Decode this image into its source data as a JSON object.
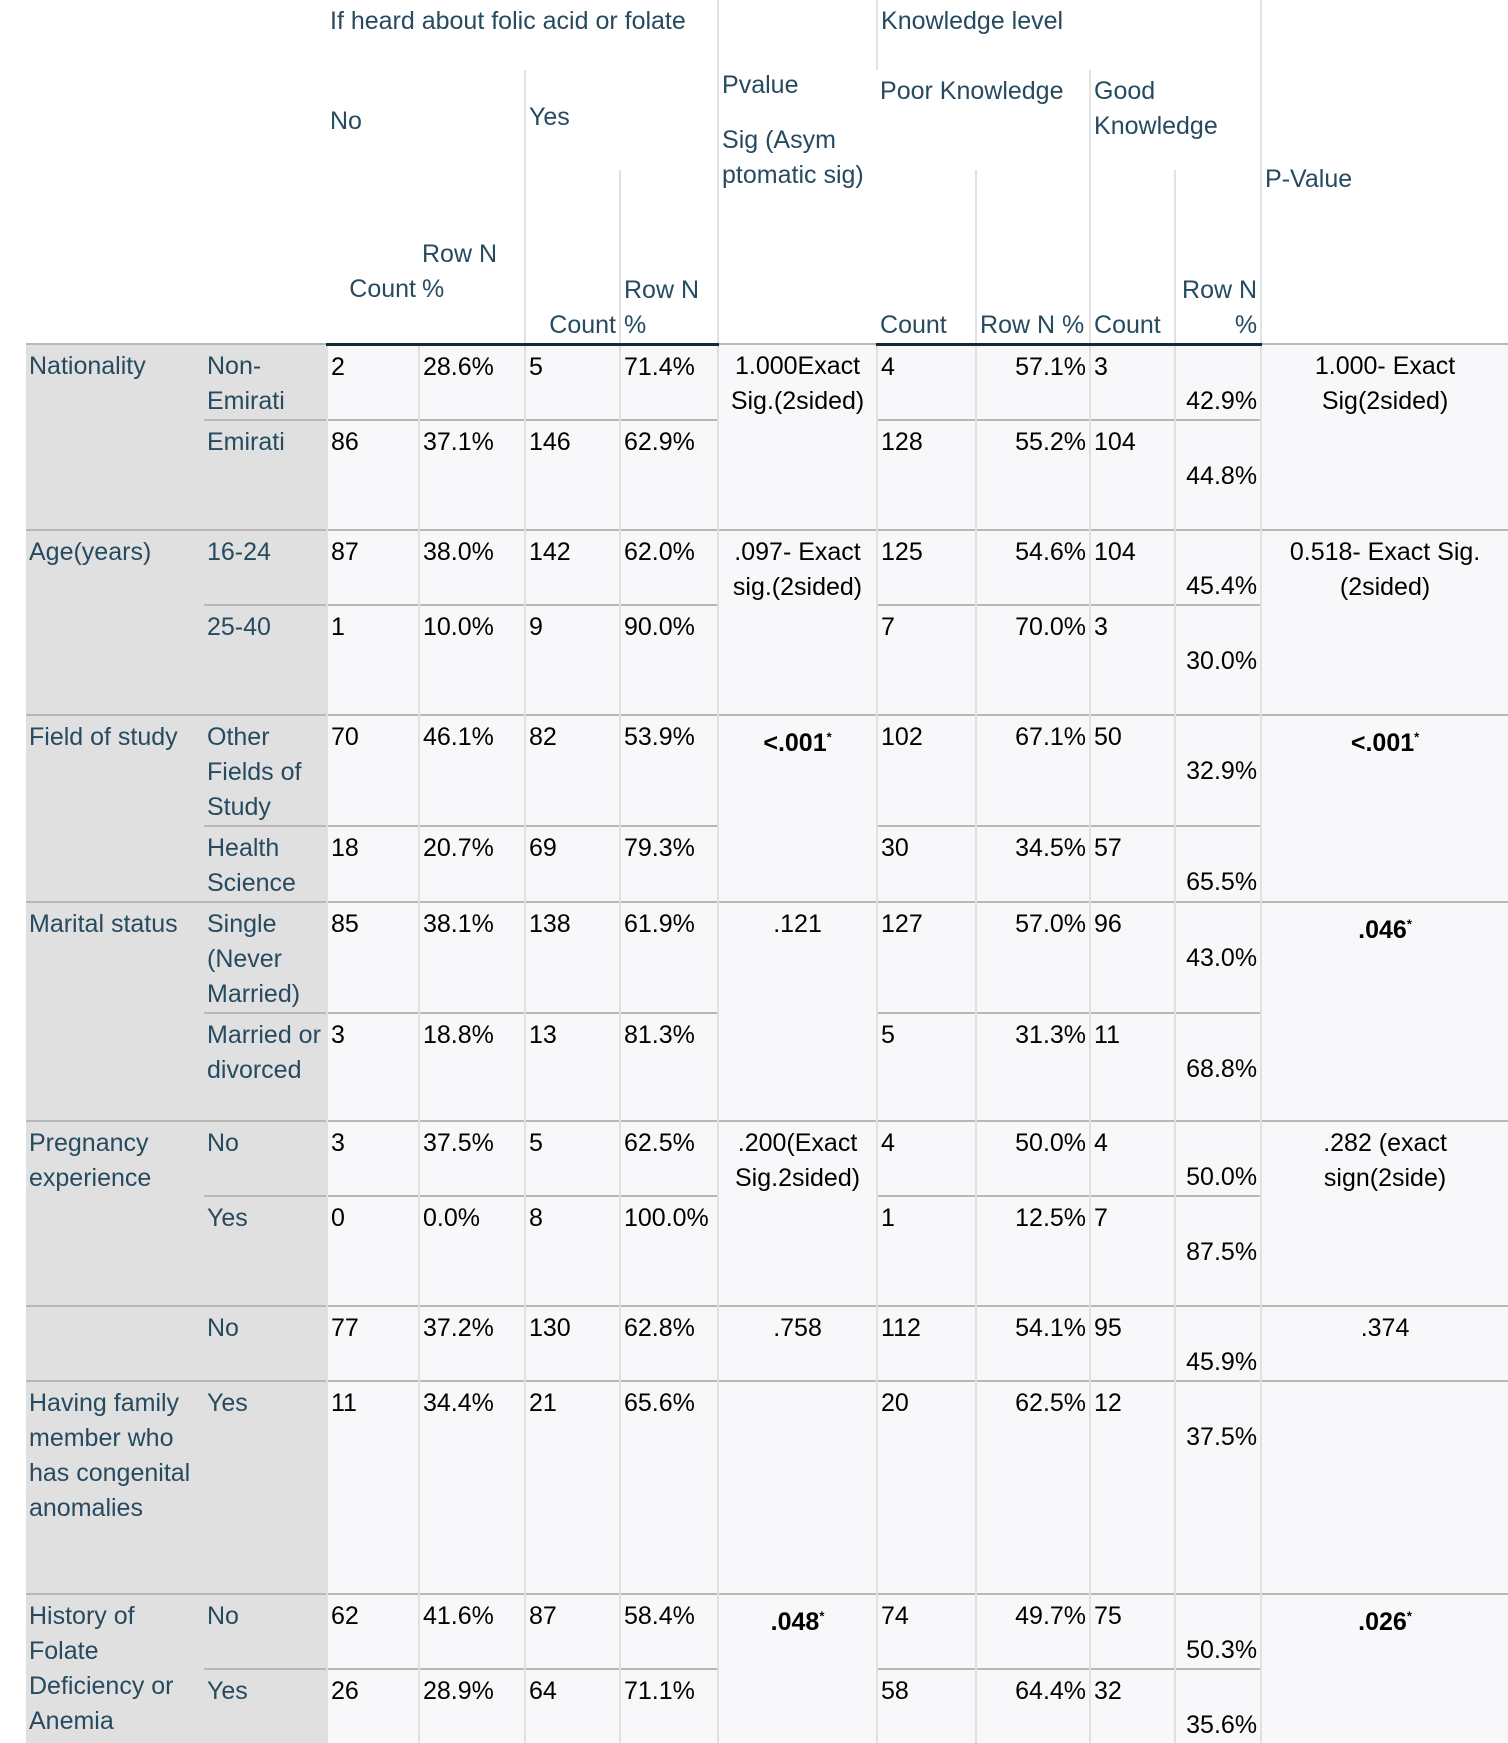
{
  "header": {
    "heard": "If heard about folic acid or folate",
    "no": "No",
    "yes": "Yes",
    "pvalue": "Pvalue",
    "sig": "Sig (Asym ptomatic sig)",
    "knowledge": "Knowledge level",
    "poor": "Poor Knowledge",
    "good": "Good Knowledge",
    "pvalue2": "P-Value",
    "count": "Count",
    "rowpct": "Row N %"
  },
  "groups": [
    {
      "label": "Nationality",
      "pvalue": "1.000Exact Sig.(2sided)",
      "pvalue_bold": false,
      "pvalue_mark": "",
      "pvalue2": "1.000- Exact Sig(2sided)",
      "pvalue2_bold": false,
      "pvalue2_mark": "",
      "rows": [
        {
          "category": "Non-Emirati",
          "no_count": "2",
          "no_pct": "28.6%",
          "yes_count": "5",
          "yes_pct": "71.4%",
          "poor_count": "4",
          "poor_pct": "57.1%",
          "good_count": "3",
          "good_pct": "42.9%"
        },
        {
          "category": "Emirati",
          "no_count": "86",
          "no_pct": "37.1%",
          "yes_count": "146",
          "yes_pct": "62.9%",
          "poor_count": "128",
          "poor_pct": "55.2%",
          "good_count": "104",
          "good_pct": "44.8%"
        }
      ]
    },
    {
      "label": "Age(years)",
      "pvalue": ".097- Exact sig.(2sided)",
      "pvalue_bold": false,
      "pvalue_mark": "",
      "pvalue2": "0.518- Exact Sig.(2sided)",
      "pvalue2_bold": false,
      "pvalue2_mark": "",
      "rows": [
        {
          "category": "16-24",
          "no_count": "87",
          "no_pct": "38.0%",
          "yes_count": "142",
          "yes_pct": "62.0%",
          "poor_count": "125",
          "poor_pct": "54.6%",
          "good_count": "104",
          "good_pct": "45.4%"
        },
        {
          "category": "25-40",
          "no_count": "1",
          "no_pct": "10.0%",
          "yes_count": "9",
          "yes_pct": "90.0%",
          "poor_count": "7",
          "poor_pct": "70.0%",
          "good_count": "3",
          "good_pct": "30.0%"
        }
      ]
    },
    {
      "label": "Field of study",
      "pvalue": "<.001",
      "pvalue_bold": true,
      "pvalue_mark": "*",
      "pvalue2": "<.001",
      "pvalue2_bold": true,
      "pvalue2_mark": "*",
      "rows": [
        {
          "category": "Other Fields of Study",
          "no_count": "70",
          "no_pct": "46.1%",
          "yes_count": "82",
          "yes_pct": "53.9%",
          "poor_count": "102",
          "poor_pct": "67.1%",
          "good_count": "50",
          "good_pct": "32.9%"
        },
        {
          "category": "Health Science",
          "no_count": "18",
          "no_pct": "20.7%",
          "yes_count": "69",
          "yes_pct": "79.3%",
          "poor_count": "30",
          "poor_pct": "34.5%",
          "good_count": "57",
          "good_pct": "65.5%"
        }
      ]
    },
    {
      "label": "Marital status",
      "pvalue": ".121",
      "pvalue_bold": false,
      "pvalue_mark": "",
      "pvalue2": ".046",
      "pvalue2_bold": true,
      "pvalue2_mark": "*",
      "rows": [
        {
          "category": "Single (Never Married)",
          "no_count": "85",
          "no_pct": "38.1%",
          "yes_count": "138",
          "yes_pct": "61.9%",
          "poor_count": "127",
          "poor_pct": "57.0%",
          "good_count": "96",
          "good_pct": "43.0%"
        },
        {
          "category": "Married or divorced",
          "no_count": "3",
          "no_pct": "18.8%",
          "yes_count": "13",
          "yes_pct": "81.3%",
          "poor_count": "5",
          "poor_pct": "31.3%",
          "good_count": "11",
          "good_pct": "68.8%"
        }
      ]
    },
    {
      "label": "Pregnancy experience",
      "pvalue": ".200(Exact Sig.2sided)",
      "pvalue_bold": false,
      "pvalue_mark": "",
      "pvalue2": ".282 (exact sign(2side)",
      "pvalue2_bold": false,
      "pvalue2_mark": "",
      "rows": [
        {
          "category": "No",
          "no_count": "3",
          "no_pct": "37.5%",
          "yes_count": "5",
          "yes_pct": "62.5%",
          "poor_count": "4",
          "poor_pct": "50.0%",
          "good_count": "4",
          "good_pct": "50.0%"
        },
        {
          "category": "Yes",
          "no_count": "0",
          "no_pct": "0.0%",
          "yes_count": "8",
          "yes_pct": "100.0%",
          "poor_count": "1",
          "poor_pct": "12.5%",
          "good_count": "7",
          "good_pct": "87.5%"
        }
      ]
    },
    {
      "label": "",
      "pvalue": ".758",
      "pvalue_bold": false,
      "pvalue_mark": "",
      "pvalue2": ".374",
      "pvalue2_bold": false,
      "pvalue2_mark": "",
      "rows": [
        {
          "category": "No",
          "no_count": "77",
          "no_pct": "37.2%",
          "yes_count": "130",
          "yes_pct": "62.8%",
          "poor_count": "112",
          "poor_pct": "54.1%",
          "good_count": "95",
          "good_pct": "45.9%"
        }
      ]
    },
    {
      "label": "Having family member who has congenital anomalies",
      "pvalue": "",
      "pvalue_bold": false,
      "pvalue_mark": "",
      "pvalue2": "",
      "pvalue2_bold": false,
      "pvalue2_mark": "",
      "rows": [
        {
          "category": "Yes",
          "no_count": "11",
          "no_pct": "34.4%",
          "yes_count": "21",
          "yes_pct": "65.6%",
          "poor_count": "20",
          "poor_pct": "62.5%",
          "good_count": "12",
          "good_pct": "37.5%"
        }
      ]
    },
    {
      "label": "History of Folate Deficiency or Anemia",
      "pvalue": ".048",
      "pvalue_bold": true,
      "pvalue_mark": "*",
      "pvalue2": ".026",
      "pvalue2_bold": true,
      "pvalue2_mark": "*",
      "rows": [
        {
          "category": "No",
          "no_count": "62",
          "no_pct": "41.6%",
          "yes_count": "87",
          "yes_pct": "58.4%",
          "poor_count": "74",
          "poor_pct": "49.7%",
          "good_count": "75",
          "good_pct": "50.3%"
        },
        {
          "category": "Yes",
          "no_count": "26",
          "no_pct": "28.9%",
          "yes_count": "64",
          "yes_pct": "71.1%",
          "poor_count": "58",
          "poor_pct": "64.4%",
          "good_count": "32",
          "good_pct": "35.6%"
        }
      ]
    }
  ]
}
